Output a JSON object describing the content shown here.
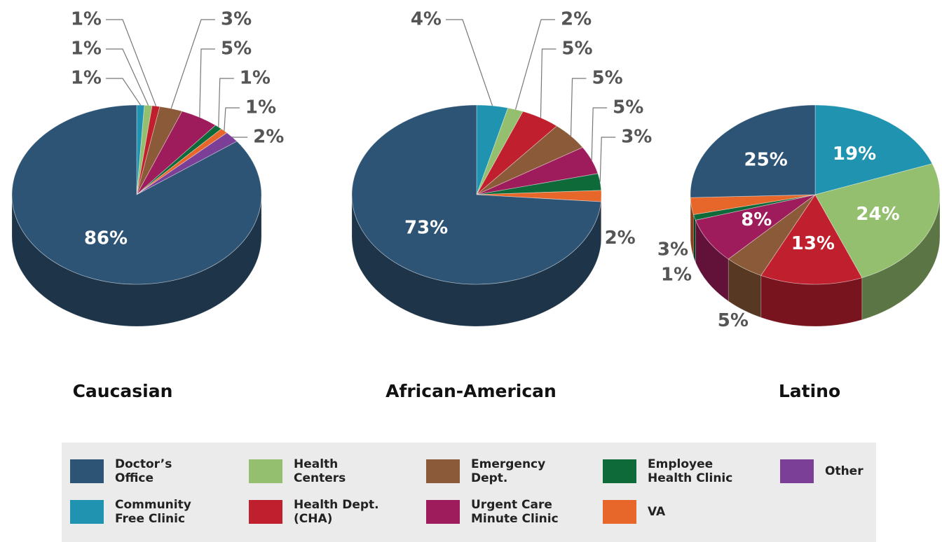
{
  "chart_data": [
    {
      "type": "pie",
      "title": "Caucasian",
      "categories": [
        "Doctor’s Office",
        "Community Free Clinic",
        "Health Centers",
        "Health Dept. (CHA)",
        "Emergency Dept.",
        "Urgent Care Minute Clinic",
        "Employee Health Clinic",
        "VA",
        "Other"
      ],
      "values": [
        86,
        1,
        1,
        1,
        3,
        5,
        1,
        1,
        2
      ],
      "value_labels": [
        "86%",
        "1%",
        "1%",
        "1%",
        "3%",
        "5%",
        "1%",
        "1%",
        "2%"
      ],
      "colors": [
        "#2e5475",
        "#1f93b0",
        "#93bf6e",
        "#c0202e",
        "#8b5a38",
        "#9e1c5c",
        "#0f6a3a",
        "#e7672a",
        "#7b3f98"
      ]
    },
    {
      "type": "pie",
      "title": "African-American",
      "categories": [
        "Doctor’s Office",
        "Community Free Clinic",
        "Health Centers",
        "Health Dept. (CHA)",
        "Emergency Dept.",
        "Urgent Care Minute Clinic",
        "Employee Health Clinic",
        "VA"
      ],
      "values": [
        73,
        4,
        2,
        5,
        5,
        5,
        3,
        2
      ],
      "value_labels": [
        "73%",
        "4%",
        "2%",
        "5%",
        "5%",
        "5%",
        "3%",
        "2%"
      ],
      "colors": [
        "#2e5475",
        "#1f93b0",
        "#93bf6e",
        "#c0202e",
        "#8b5a38",
        "#9e1c5c",
        "#0f6a3a",
        "#e7672a"
      ]
    },
    {
      "type": "pie",
      "title": "Latino",
      "categories": [
        "Doctor’s Office",
        "Community Free Clinic",
        "Health Centers",
        "Health Dept. (CHA)",
        "Emergency Dept.",
        "Urgent Care Minute Clinic",
        "Employee Health Clinic",
        "VA"
      ],
      "values": [
        25,
        19,
        24,
        13,
        5,
        8,
        1,
        3
      ],
      "value_labels": [
        "25%",
        "19%",
        "24%",
        "13%",
        "5%",
        "8%",
        "1%",
        "3%"
      ],
      "colors": [
        "#2e5475",
        "#1f93b0",
        "#93bf6e",
        "#c0202e",
        "#8b5a38",
        "#9e1c5c",
        "#0f6a3a",
        "#e7672a"
      ]
    }
  ]
}
